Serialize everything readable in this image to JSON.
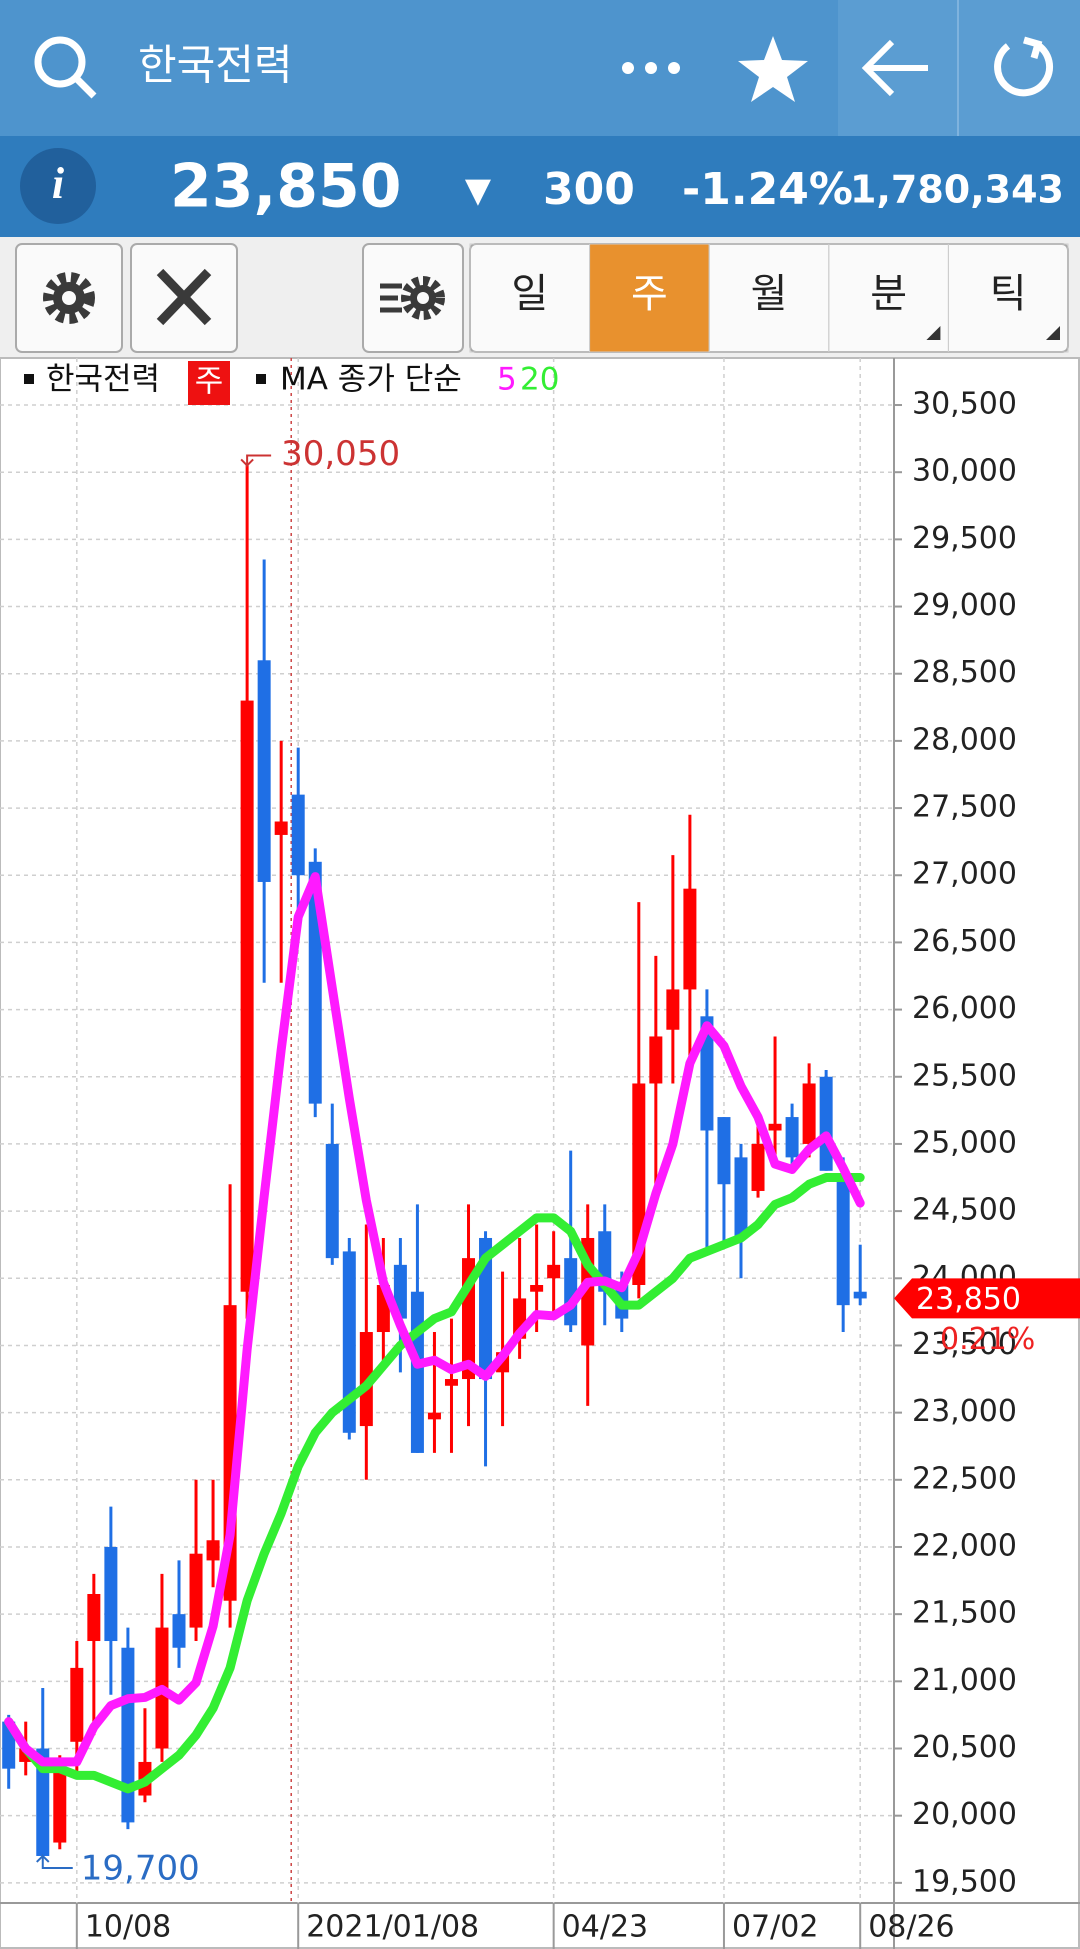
{
  "header": {
    "title": "한국전력"
  },
  "quote": {
    "icon": "i",
    "price": "23,850",
    "change_arrow": "▼",
    "change": "300",
    "change_pct": "-1.24%",
    "volume": "1,780,343"
  },
  "toolbar": {
    "tabs": [
      "일",
      "주",
      "월",
      "분",
      "틱"
    ]
  },
  "chart_data": {
    "type": "candlestick",
    "legend": {
      "symbol": "한국전력",
      "period": "주",
      "ma_label": "MA 종가 단순"
    },
    "categories": [
      null,
      null,
      null,
      null,
      "10/08",
      null,
      null,
      null,
      null,
      null,
      null,
      null,
      null,
      null,
      null,
      null,
      null,
      "2021/01/08",
      null,
      null,
      null,
      null,
      null,
      null,
      null,
      null,
      null,
      null,
      null,
      null,
      null,
      null,
      "04/23",
      null,
      null,
      null,
      null,
      null,
      null,
      null,
      null,
      null,
      "07/02",
      null,
      null,
      null,
      null,
      null,
      null,
      null,
      "08/26"
    ],
    "open": [
      20700,
      20400,
      20500,
      19800,
      20550,
      21300,
      22000,
      21250,
      20150,
      20500,
      21500,
      21400,
      21900,
      21600,
      23900,
      28600,
      27300,
      27600,
      27100,
      25000,
      24200,
      22900,
      23600,
      24100,
      23900,
      22950,
      23200,
      23250,
      24300,
      23300,
      23550,
      23900,
      24000,
      24150,
      23500,
      24350,
      23950,
      23950,
      25450,
      25850,
      26150,
      25950,
      25200,
      24900,
      24650,
      25100,
      25200,
      25000,
      25500,
      24750,
      23900
    ],
    "high": [
      20750,
      20700,
      20950,
      20450,
      21300,
      21800,
      22300,
      21400,
      20800,
      21800,
      21900,
      22500,
      22500,
      24700,
      30050,
      29350,
      28000,
      27950,
      27200,
      25300,
      24300,
      24400,
      24300,
      24300,
      24550,
      23600,
      23700,
      24550,
      24350,
      24050,
      24300,
      24400,
      24350,
      24950,
      24550,
      24550,
      24050,
      26800,
      26400,
      27150,
      27450,
      26150,
      25200,
      25000,
      25250,
      25800,
      25300,
      25600,
      25550,
      24900,
      24250
    ],
    "low": [
      20200,
      20300,
      19700,
      19750,
      20300,
      20600,
      20900,
      19900,
      20100,
      20400,
      21100,
      21300,
      21700,
      21400,
      23700,
      26200,
      26200,
      26600,
      25200,
      24100,
      22800,
      22500,
      23350,
      23300,
      22700,
      22700,
      22700,
      22900,
      22600,
      22900,
      23400,
      23600,
      23700,
      23600,
      23050,
      23650,
      23600,
      23850,
      24700,
      25450,
      25650,
      24200,
      24250,
      24000,
      24600,
      24850,
      24800,
      24900,
      24800,
      23600,
      23800
    ],
    "close": [
      20350,
      20500,
      19700,
      20350,
      21100,
      21650,
      21300,
      19950,
      20400,
      21400,
      21250,
      21950,
      22050,
      23800,
      28300,
      26950,
      27400,
      27000,
      25300,
      24150,
      22850,
      23600,
      23950,
      23700,
      22700,
      23000,
      23250,
      24150,
      23250,
      23450,
      23850,
      23950,
      24100,
      23650,
      24300,
      23900,
      23700,
      25450,
      25800,
      26150,
      26900,
      25100,
      24700,
      24300,
      25000,
      25150,
      24900,
      25450,
      24800,
      23800,
      23850
    ],
    "up_color": "#ff0000",
    "down_color": "#1f6fe5",
    "ma_series": [
      {
        "name": "5",
        "color": "#ff1aff",
        "values": [
          20700,
          20500,
          20400,
          20400,
          20400,
          20660,
          20820,
          20870,
          20880,
          20940,
          20860,
          20990,
          21410,
          22090,
          23470,
          24610,
          25700,
          26690,
          26990,
          26160,
          25340,
          24580,
          23970,
          23650,
          23360,
          23390,
          23320,
          23360,
          23270,
          23420,
          23590,
          23730,
          23720,
          23800,
          23970,
          23980,
          23930,
          24200,
          24630,
          25000,
          25600,
          25880,
          25730,
          25430,
          25200,
          24850,
          24810,
          24960,
          25060,
          24820,
          24560
        ]
      },
      {
        "name": "20",
        "color": "#33ee33",
        "values": [
          20700,
          20500,
          20350,
          20350,
          20300,
          20300,
          20250,
          20200,
          20250,
          20350,
          20450,
          20600,
          20800,
          21100,
          21600,
          21950,
          22250,
          22600,
          22850,
          23000,
          23100,
          23200,
          23350,
          23500,
          23600,
          23700,
          23750,
          23950,
          24150,
          24250,
          24350,
          24450,
          24450,
          24350,
          24100,
          23950,
          23800,
          23800,
          23900,
          24000,
          24150,
          24200,
          24250,
          24300,
          24400,
          24550,
          24600,
          24700,
          24750,
          24750,
          24750
        ]
      }
    ],
    "ylim": [
      19350,
      30850
    ],
    "yticks": [
      {
        "value": 19500,
        "label": "19,500"
      },
      {
        "value": 20000,
        "label": "20,000"
      },
      {
        "value": 20500,
        "label": "20,500"
      },
      {
        "value": 21000,
        "label": "21,000"
      },
      {
        "value": 21500,
        "label": "21,500"
      },
      {
        "value": 22000,
        "label": "22,000"
      },
      {
        "value": 22500,
        "label": "22,500"
      },
      {
        "value": 23000,
        "label": "23,000"
      },
      {
        "value": 23500,
        "label": "23,500"
      },
      {
        "value": 24000,
        "label": "24,000"
      },
      {
        "value": 24500,
        "label": "24,500"
      },
      {
        "value": 25000,
        "label": "25,000"
      },
      {
        "value": 25500,
        "label": "25,500"
      },
      {
        "value": 26000,
        "label": "26,000"
      },
      {
        "value": 26500,
        "label": "26,500"
      },
      {
        "value": 27000,
        "label": "27,000"
      },
      {
        "value": 27500,
        "label": "27,500"
      },
      {
        "value": 28000,
        "label": "28,000"
      },
      {
        "value": 28500,
        "label": "28,500"
      },
      {
        "value": 29000,
        "label": "29,000"
      },
      {
        "value": 29500,
        "label": "29,500"
      },
      {
        "value": 30000,
        "label": "30,000"
      },
      {
        "value": 30500,
        "label": "30,500"
      }
    ],
    "grid": true,
    "high_label": "30,050",
    "low_label": "19,700",
    "last_price_label": "23,850",
    "last_pct_label": "0.21%"
  }
}
